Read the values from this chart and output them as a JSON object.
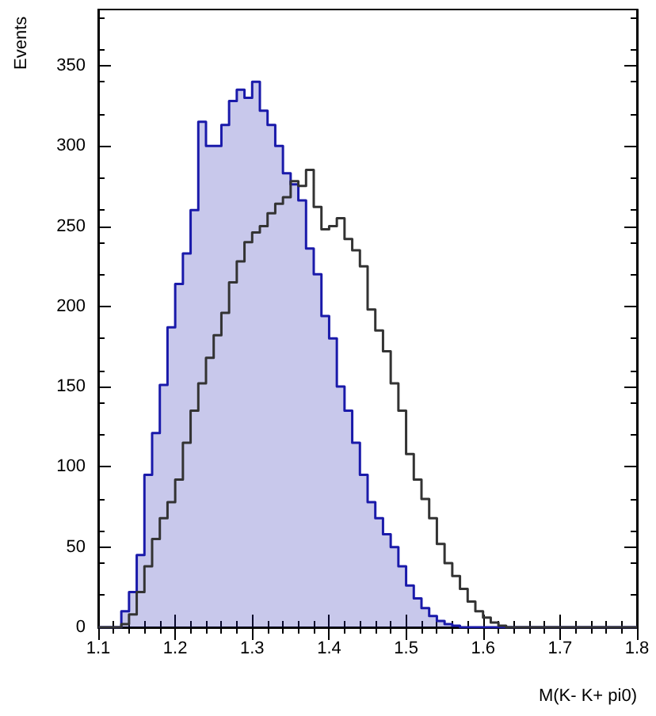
{
  "chart_data": {
    "type": "step",
    "xlabel": "M(K- K+ pi0)",
    "ylabel": "Events",
    "x": [
      1.1,
      1.11,
      1.12,
      1.13,
      1.14,
      1.15,
      1.16,
      1.17,
      1.18,
      1.19,
      1.2,
      1.21,
      1.22,
      1.23,
      1.24,
      1.25,
      1.26,
      1.27,
      1.28,
      1.29,
      1.3,
      1.31,
      1.32,
      1.33,
      1.34,
      1.35,
      1.36,
      1.37,
      1.38,
      1.39,
      1.4,
      1.41,
      1.42,
      1.43,
      1.44,
      1.45,
      1.46,
      1.47,
      1.48,
      1.49,
      1.5,
      1.51,
      1.52,
      1.53,
      1.54,
      1.55,
      1.56,
      1.57,
      1.58,
      1.59,
      1.6,
      1.61,
      1.62,
      1.63,
      1.64,
      1.65,
      1.66,
      1.67,
      1.68,
      1.69,
      1.7,
      1.71,
      1.72,
      1.73,
      1.74,
      1.75,
      1.76,
      1.77,
      1.78,
      1.79,
      1.8
    ],
    "series": [
      {
        "type": "area",
        "color": "#1a1aaa",
        "values": [
          0,
          0,
          0,
          10,
          22,
          45,
          95,
          121,
          151,
          187,
          214,
          233,
          260,
          315,
          300,
          300,
          313,
          328,
          335,
          330,
          340,
          322,
          313,
          300,
          283,
          276,
          266,
          236,
          220,
          194,
          180,
          150,
          135,
          115,
          95,
          78,
          68,
          58,
          50,
          38,
          26,
          18,
          12,
          7,
          4,
          2,
          1,
          0,
          0,
          0,
          0,
          0,
          0,
          0,
          0,
          0,
          0,
          0,
          0,
          0,
          0,
          0,
          0,
          0,
          0,
          0,
          0,
          0,
          0,
          0,
          0
        ]
      },
      {
        "color": "#333333",
        "values": [
          0,
          0,
          0,
          2,
          8,
          22,
          38,
          55,
          68,
          78,
          92,
          115,
          135,
          152,
          168,
          182,
          196,
          215,
          228,
          240,
          246,
          250,
          258,
          264,
          268,
          278,
          275,
          285,
          262,
          248,
          250,
          255,
          242,
          235,
          225,
          198,
          185,
          172,
          152,
          135,
          108,
          92,
          80,
          68,
          52,
          40,
          32,
          24,
          16,
          10,
          6,
          3,
          1,
          0,
          0,
          0,
          0,
          0,
          0,
          0,
          0,
          0,
          0,
          0,
          0,
          0,
          0,
          0,
          0,
          0,
          0
        ]
      }
    ],
    "xlim": [
      1.1,
      1.8
    ],
    "xticks": [
      1.1,
      1.2,
      1.3,
      1.4,
      1.5,
      1.6,
      1.7,
      1.8
    ],
    "ylim": [
      0,
      385
    ],
    "yticks": [
      0,
      50,
      100,
      150,
      200,
      250,
      300,
      350
    ],
    "grid": false
  }
}
